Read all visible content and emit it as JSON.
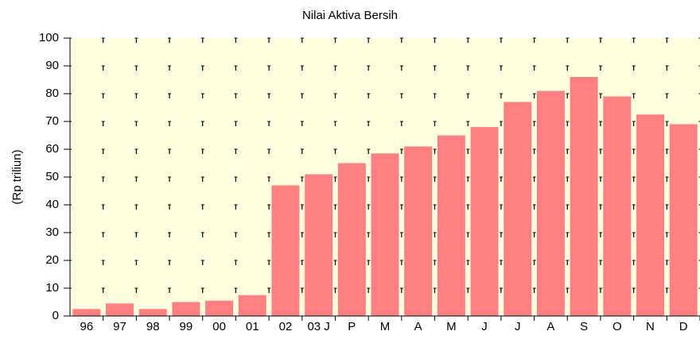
{
  "chart_data": {
    "type": "bar",
    "title": "Nilai Aktiva Bersih",
    "y_label": "(Rp triliun)",
    "categories": [
      "96",
      "97",
      "98",
      "99",
      "00",
      "01",
      "02",
      "03 J",
      "P",
      "M",
      "A",
      "M",
      "J",
      "J",
      "A",
      "S",
      "O",
      "N",
      "D"
    ],
    "values": [
      2.5,
      4.5,
      2.5,
      5,
      5.5,
      7.5,
      47,
      51,
      55,
      58.5,
      61,
      65,
      68,
      77,
      81,
      86,
      79,
      72.5,
      69
    ],
    "color": "#ff8080",
    "ylim": [
      0,
      100
    ],
    "yticks": [
      0,
      10,
      20,
      30,
      40,
      50,
      60,
      70,
      80,
      90,
      100
    ],
    "grid": true
  }
}
